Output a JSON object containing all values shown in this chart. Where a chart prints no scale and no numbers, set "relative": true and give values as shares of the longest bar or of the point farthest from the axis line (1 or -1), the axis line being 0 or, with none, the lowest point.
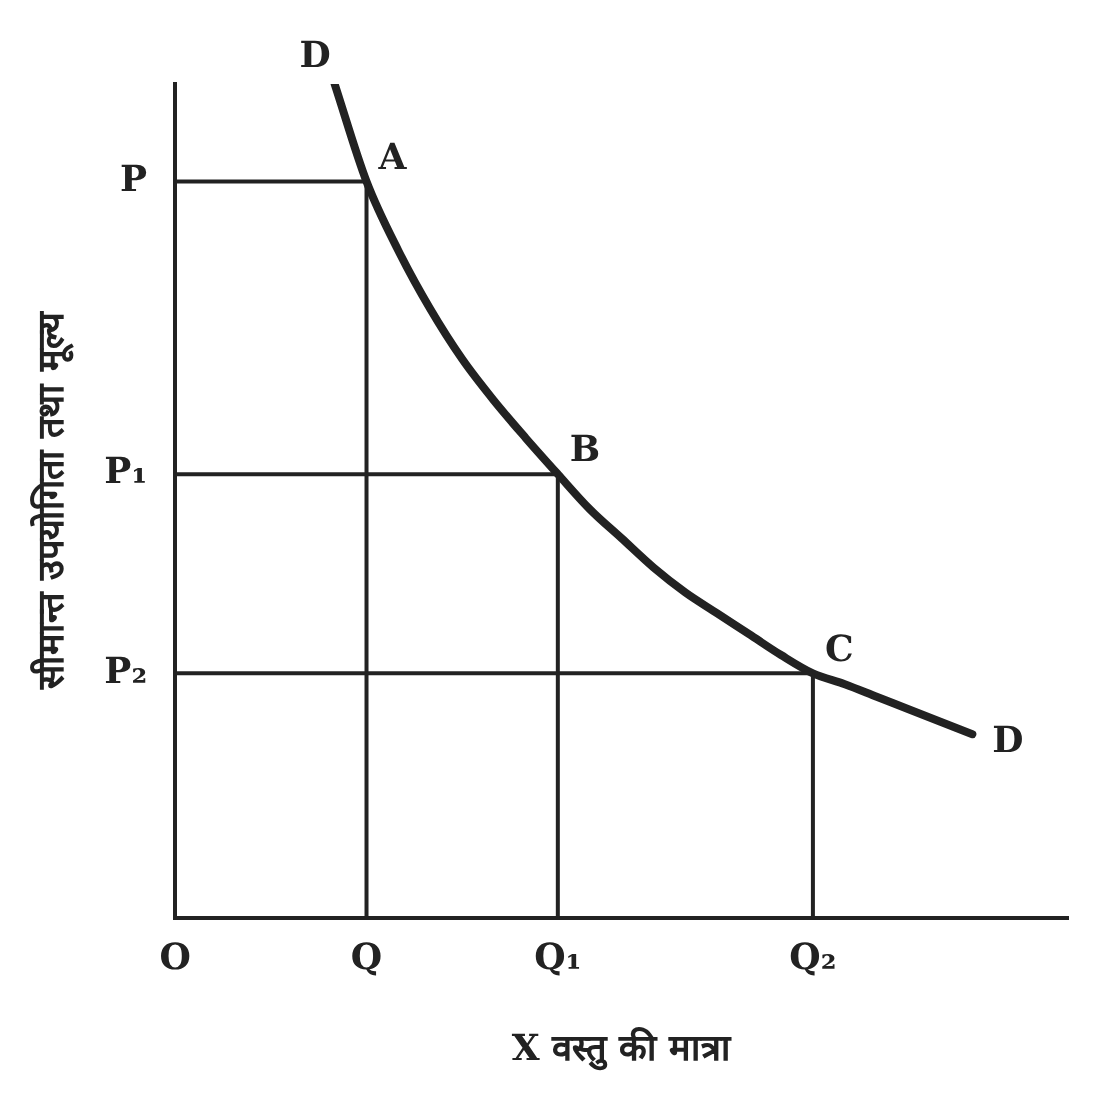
{
  "chart_data": {
    "type": "line",
    "relative": true,
    "xlabel": "X वस्तु की मात्रा",
    "ylabel": "सीमान्त उपयोगिता तथा मूल्य",
    "categories": [
      "O",
      null,
      null,
      null,
      null,
      null,
      "Q",
      null,
      null,
      null,
      null,
      null,
      "Q₁",
      null,
      null,
      null,
      null,
      null,
      null,
      null,
      "Q₂",
      null,
      null,
      null,
      null,
      null,
      null,
      null,
      null
    ],
    "grid": "x",
    "legend": false,
    "marker": "none",
    "line_style": "solid",
    "series": [
      {
        "color": "#222222",
        "values": [
          null,
          null,
          null,
          null,
          null,
          1,
          0.883,
          0.8,
          0.73,
          0.67,
          0.62,
          0.575,
          0.532,
          0.49,
          0.455,
          0.42,
          0.39,
          0.365,
          0.34,
          0.315,
          0.293,
          0.28,
          0.265,
          0.25,
          0.235,
          0.22,
          null,
          null,
          null
        ]
      }
    ],
    "annotations": [
      "D",
      "D",
      "P",
      "P₁",
      "P₂",
      {
        "text": "A",
        "x": "Q",
        "y": 0.883
      },
      {
        "text": "B",
        "x": "Q₁",
        "y": 0.532
      },
      {
        "text": "C",
        "x": "Q₂",
        "y": 0.293
      }
    ]
  }
}
